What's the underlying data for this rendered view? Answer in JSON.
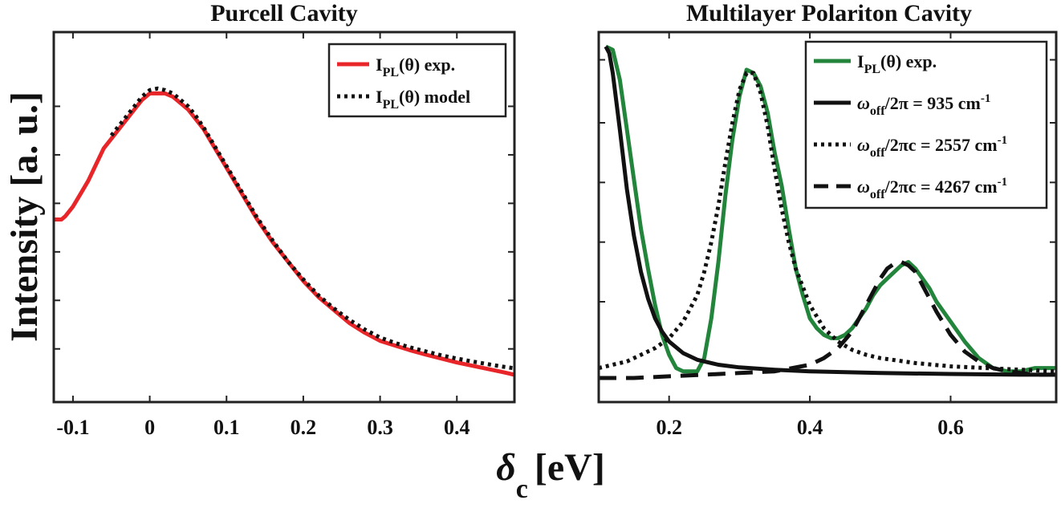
{
  "figure": {
    "ylabel": "Intensity [a. u.]",
    "xlabel_symbol": "δ",
    "xlabel_subscript": "c",
    "xlabel_unit": "[eV]"
  },
  "chart_data": [
    {
      "type": "line",
      "title": "Purcell Cavity",
      "xlabel": "δc [eV]",
      "ylabel": "Intensity [a. u.]",
      "xlim": [
        -0.125,
        0.475
      ],
      "ylim": [
        0,
        1
      ],
      "grid": false,
      "legend_position": "top-right",
      "xticks": [
        -0.1,
        0,
        0.1,
        0.2,
        0.3,
        0.4
      ],
      "xtick_labels": [
        "-0.1",
        "0",
        "0.1",
        "0.2",
        "0.3",
        "0.4"
      ],
      "yticks": [
        0.09,
        0.24,
        0.39,
        0.54,
        0.69,
        0.84
      ],
      "series": [
        {
          "name": "I_PL(θ) exp.",
          "legend_main": "I",
          "legend_sub": "PL",
          "legend_rest": "(θ) exp.",
          "color": "#e8262a",
          "style": "solid",
          "x": [
            -0.125,
            -0.12,
            -0.115,
            -0.11,
            -0.1,
            -0.09,
            -0.08,
            -0.07,
            -0.06,
            -0.05,
            -0.04,
            -0.03,
            -0.02,
            -0.01,
            0.0,
            0.01,
            0.02,
            0.03,
            0.04,
            0.05,
            0.06,
            0.07,
            0.08,
            0.09,
            0.1,
            0.12,
            0.14,
            0.16,
            0.18,
            0.2,
            0.22,
            0.24,
            0.26,
            0.28,
            0.3,
            0.32,
            0.34,
            0.36,
            0.38,
            0.4,
            0.42,
            0.44,
            0.46,
            0.475
          ],
          "y": [
            0.49,
            0.49,
            0.49,
            0.5,
            0.53,
            0.57,
            0.61,
            0.66,
            0.71,
            0.74,
            0.77,
            0.8,
            0.83,
            0.86,
            0.88,
            0.88,
            0.88,
            0.87,
            0.85,
            0.83,
            0.8,
            0.77,
            0.73,
            0.69,
            0.65,
            0.57,
            0.49,
            0.42,
            0.36,
            0.3,
            0.25,
            0.21,
            0.17,
            0.14,
            0.115,
            0.1,
            0.085,
            0.072,
            0.06,
            0.048,
            0.038,
            0.028,
            0.018,
            0.01
          ]
        },
        {
          "name": "I_PL(θ) model",
          "legend_main": "I",
          "legend_sub": "PL",
          "legend_rest": "(θ) model",
          "color": "#111111",
          "style": "dotted",
          "x": [
            -0.05,
            -0.04,
            -0.03,
            -0.02,
            -0.01,
            0.0,
            0.01,
            0.02,
            0.03,
            0.04,
            0.05,
            0.06,
            0.07,
            0.08,
            0.09,
            0.1,
            0.12,
            0.14,
            0.16,
            0.18,
            0.2,
            0.22,
            0.24,
            0.26,
            0.28,
            0.3,
            0.32,
            0.34,
            0.36,
            0.38,
            0.4,
            0.42,
            0.44,
            0.46,
            0.475
          ],
          "y": [
            0.75,
            0.78,
            0.81,
            0.84,
            0.87,
            0.89,
            0.895,
            0.89,
            0.88,
            0.86,
            0.84,
            0.81,
            0.775,
            0.735,
            0.695,
            0.655,
            0.575,
            0.495,
            0.425,
            0.36,
            0.305,
            0.255,
            0.215,
            0.18,
            0.15,
            0.125,
            0.108,
            0.094,
            0.082,
            0.07,
            0.06,
            0.051,
            0.043,
            0.035,
            0.03
          ]
        }
      ]
    },
    {
      "type": "line",
      "title": "Multilayer Polariton Cavity",
      "xlabel": "δc [eV]",
      "ylabel": "Intensity [a. u.]",
      "xlim": [
        0.1,
        0.75
      ],
      "ylim": [
        0,
        1
      ],
      "grid": false,
      "legend_position": "top-right",
      "xticks": [
        0.2,
        0.4,
        0.6
      ],
      "xtick_labels": [
        "0.2",
        "0.4",
        "0.6"
      ],
      "yticks": [
        0.23,
        0.41,
        0.59,
        0.77,
        0.96
      ],
      "series": [
        {
          "name": "I_PL(θ) exp.",
          "legend_main": "I",
          "legend_sub": "PL",
          "legend_rest": "(θ) exp.",
          "color": "#23843b",
          "style": "solid",
          "x": [
            0.11,
            0.12,
            0.13,
            0.14,
            0.15,
            0.16,
            0.17,
            0.18,
            0.19,
            0.2,
            0.21,
            0.22,
            0.23,
            0.24,
            0.25,
            0.26,
            0.27,
            0.28,
            0.29,
            0.3,
            0.31,
            0.32,
            0.33,
            0.34,
            0.35,
            0.36,
            0.37,
            0.38,
            0.39,
            0.4,
            0.41,
            0.42,
            0.43,
            0.44,
            0.45,
            0.46,
            0.47,
            0.48,
            0.49,
            0.5,
            0.51,
            0.52,
            0.53,
            0.54,
            0.55,
            0.56,
            0.57,
            0.58,
            0.59,
            0.6,
            0.62,
            0.64,
            0.66,
            0.68,
            0.7,
            0.72,
            0.75
          ],
          "y": [
            1.0,
            0.99,
            0.9,
            0.75,
            0.6,
            0.45,
            0.33,
            0.22,
            0.13,
            0.07,
            0.03,
            0.02,
            0.02,
            0.02,
            0.06,
            0.18,
            0.35,
            0.55,
            0.72,
            0.85,
            0.93,
            0.92,
            0.88,
            0.8,
            0.68,
            0.58,
            0.45,
            0.33,
            0.25,
            0.18,
            0.15,
            0.13,
            0.12,
            0.12,
            0.13,
            0.15,
            0.18,
            0.21,
            0.25,
            0.28,
            0.3,
            0.32,
            0.34,
            0.35,
            0.33,
            0.3,
            0.27,
            0.23,
            0.2,
            0.17,
            0.11,
            0.06,
            0.03,
            0.02,
            0.02,
            0.03,
            0.03
          ]
        },
        {
          "name": "ω_off/2π = 935 cm^-1",
          "legend_main": "ω",
          "legend_sub": "off",
          "legend_rest": "/2π = 935 cm",
          "legend_sup": "-1",
          "color": "#111111",
          "style": "solid",
          "x": [
            0.11,
            0.115,
            0.12,
            0.13,
            0.14,
            0.15,
            0.16,
            0.17,
            0.18,
            0.19,
            0.2,
            0.22,
            0.24,
            0.27,
            0.3,
            0.35,
            0.4,
            0.5,
            0.6,
            0.7,
            0.75
          ],
          "y": [
            1.0,
            0.98,
            0.92,
            0.75,
            0.57,
            0.43,
            0.32,
            0.24,
            0.18,
            0.14,
            0.11,
            0.075,
            0.055,
            0.04,
            0.032,
            0.025,
            0.02,
            0.015,
            0.012,
            0.01,
            0.01
          ]
        },
        {
          "name": "ω_off/2πc = 2557 cm^-1",
          "legend_main": "ω",
          "legend_sub": "off",
          "legend_rest": "/2πc = 2557 cm",
          "legend_sup": "-1",
          "color": "#111111",
          "style": "dotted",
          "x": [
            0.1,
            0.12,
            0.14,
            0.16,
            0.18,
            0.2,
            0.22,
            0.24,
            0.25,
            0.26,
            0.27,
            0.28,
            0.29,
            0.3,
            0.31,
            0.32,
            0.33,
            0.34,
            0.35,
            0.36,
            0.37,
            0.38,
            0.4,
            0.42,
            0.44,
            0.46,
            0.48,
            0.5,
            0.55,
            0.6,
            0.65,
            0.7,
            0.75
          ],
          "y": [
            0.03,
            0.04,
            0.05,
            0.07,
            0.09,
            0.12,
            0.17,
            0.25,
            0.32,
            0.41,
            0.52,
            0.65,
            0.77,
            0.87,
            0.92,
            0.92,
            0.86,
            0.76,
            0.63,
            0.51,
            0.41,
            0.33,
            0.22,
            0.15,
            0.11,
            0.085,
            0.07,
            0.06,
            0.045,
            0.035,
            0.03,
            0.025,
            0.02
          ]
        },
        {
          "name": "ω_off/2πc = 4267 cm^-1",
          "legend_main": "ω",
          "legend_sub": "off",
          "legend_rest": "/2πc = 4267 cm",
          "legend_sup": "-1",
          "color": "#111111",
          "style": "dashed",
          "x": [
            0.1,
            0.15,
            0.2,
            0.25,
            0.3,
            0.35,
            0.4,
            0.42,
            0.44,
            0.46,
            0.47,
            0.48,
            0.49,
            0.5,
            0.51,
            0.52,
            0.53,
            0.54,
            0.55,
            0.56,
            0.57,
            0.58,
            0.6,
            0.62,
            0.64,
            0.66,
            0.68,
            0.7,
            0.72,
            0.75
          ],
          "y": [
            0.0,
            0.0,
            0.005,
            0.01,
            0.015,
            0.02,
            0.04,
            0.06,
            0.09,
            0.14,
            0.18,
            0.22,
            0.26,
            0.3,
            0.33,
            0.345,
            0.35,
            0.34,
            0.32,
            0.28,
            0.24,
            0.2,
            0.13,
            0.08,
            0.05,
            0.03,
            0.02,
            0.015,
            0.01,
            0.01
          ]
        }
      ]
    }
  ]
}
